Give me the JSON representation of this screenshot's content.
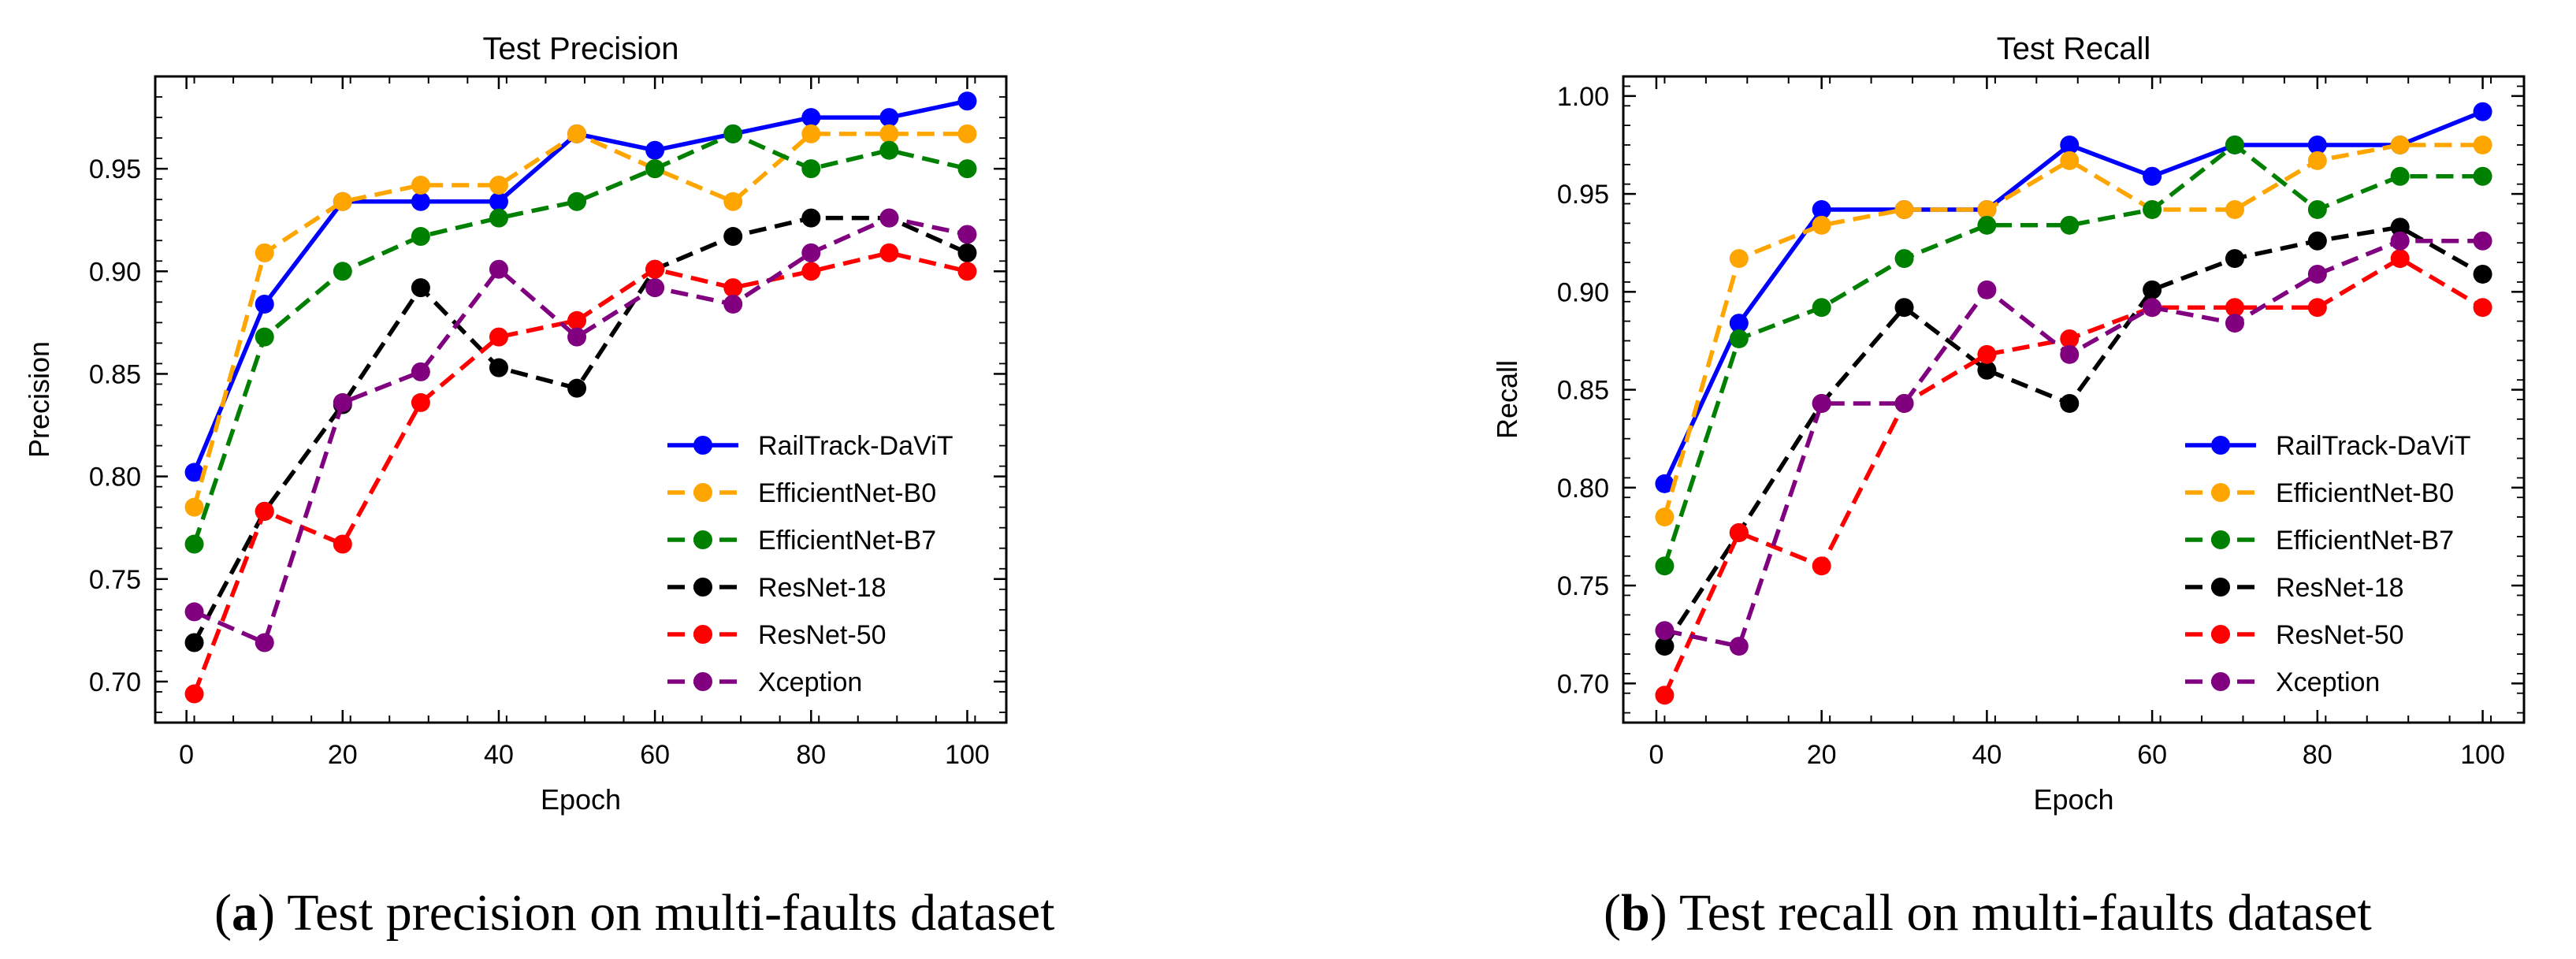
{
  "captions": [
    {
      "letter": "a",
      "text": "Test precision on multi-faults dataset"
    },
    {
      "letter": "b",
      "text": "Test recall on multi-faults dataset"
    }
  ],
  "colors": {
    "RailTrack-DaViT": "#0000ff",
    "EfficientNet-B0": "#ffa500",
    "EfficientNet-B7": "#008000",
    "ResNet-18": "#000000",
    "ResNet-50": "#ff0000",
    "Xception": "#800080"
  },
  "chart_data": [
    {
      "type": "line",
      "title": "Test Precision",
      "xlabel": "Epoch",
      "ylabel": "Precision",
      "xlim": [
        -4,
        105
      ],
      "ylim": [
        0.68,
        0.995
      ],
      "xticks": [
        0,
        20,
        40,
        60,
        80,
        100
      ],
      "yticks": [
        0.7,
        0.75,
        0.8,
        0.85,
        0.9,
        0.95
      ],
      "grid": false,
      "legend": "lower-right",
      "x": [
        1,
        10,
        20,
        30,
        40,
        50,
        60,
        70,
        80,
        90,
        100
      ],
      "series": [
        {
          "name": "RailTrack-DaViT",
          "style": "solid",
          "values": [
            0.802,
            0.884,
            0.934,
            0.934,
            0.934,
            0.967,
            0.959,
            0.967,
            0.975,
            0.975,
            0.983
          ]
        },
        {
          "name": "EfficientNet-B0",
          "style": "dashed",
          "values": [
            0.785,
            0.909,
            0.934,
            0.942,
            0.942,
            0.967,
            0.95,
            0.934,
            0.967,
            0.967,
            0.967
          ]
        },
        {
          "name": "EfficientNet-B7",
          "style": "dashed",
          "values": [
            0.767,
            0.868,
            0.9,
            0.917,
            0.926,
            0.934,
            0.95,
            0.967,
            0.95,
            0.959,
            0.95
          ]
        },
        {
          "name": "ResNet-18",
          "style": "dashed",
          "values": [
            0.719,
            0.783,
            0.835,
            0.892,
            0.853,
            0.843,
            0.901,
            0.917,
            0.926,
            0.926,
            0.909
          ]
        },
        {
          "name": "ResNet-50",
          "style": "dashed",
          "values": [
            0.694,
            0.783,
            0.767,
            0.836,
            0.868,
            0.876,
            0.901,
            0.892,
            0.9,
            0.909,
            0.9
          ]
        },
        {
          "name": "Xception",
          "style": "dashed",
          "values": [
            0.734,
            0.719,
            0.836,
            0.851,
            0.901,
            0.868,
            0.892,
            0.884,
            0.909,
            0.926,
            0.918
          ]
        }
      ]
    },
    {
      "type": "line",
      "title": "Test Recall",
      "xlabel": "Epoch",
      "ylabel": "Recall",
      "xlim": [
        -4,
        105
      ],
      "ylim": [
        0.68,
        1.01
      ],
      "xticks": [
        0,
        20,
        40,
        60,
        80,
        100
      ],
      "yticks": [
        0.7,
        0.75,
        0.8,
        0.85,
        0.9,
        0.95,
        1.0
      ],
      "grid": false,
      "legend": "lower-right",
      "x": [
        1,
        10,
        20,
        30,
        40,
        50,
        60,
        70,
        80,
        90,
        100
      ],
      "series": [
        {
          "name": "RailTrack-DaViT",
          "style": "solid",
          "values": [
            0.802,
            0.884,
            0.942,
            0.942,
            0.942,
            0.975,
            0.959,
            0.975,
            0.975,
            0.975,
            0.992
          ]
        },
        {
          "name": "EfficientNet-B0",
          "style": "dashed",
          "values": [
            0.785,
            0.917,
            0.934,
            0.942,
            0.942,
            0.967,
            0.942,
            0.942,
            0.967,
            0.975,
            0.975
          ]
        },
        {
          "name": "EfficientNet-B7",
          "style": "dashed",
          "values": [
            0.76,
            0.876,
            0.892,
            0.917,
            0.934,
            0.934,
            0.942,
            0.975,
            0.942,
            0.959,
            0.959
          ]
        },
        {
          "name": "ResNet-18",
          "style": "dashed",
          "values": [
            0.719,
            0.777,
            0.843,
            0.892,
            0.86,
            0.843,
            0.901,
            0.917,
            0.926,
            0.933,
            0.909
          ]
        },
        {
          "name": "ResNet-50",
          "style": "dashed",
          "values": [
            0.694,
            0.777,
            0.76,
            0.843,
            0.868,
            0.876,
            0.892,
            0.892,
            0.892,
            0.917,
            0.892
          ]
        },
        {
          "name": "Xception",
          "style": "dashed",
          "values": [
            0.727,
            0.719,
            0.843,
            0.843,
            0.901,
            0.868,
            0.892,
            0.884,
            0.909,
            0.926,
            0.926
          ]
        }
      ]
    }
  ]
}
